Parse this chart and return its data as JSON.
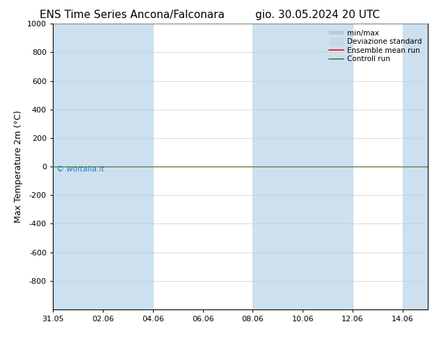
{
  "title_left": "ENS Time Series Ancona/Falconara",
  "title_right": "gio. 30.05.2024 20 UTC",
  "ylabel": "Max Temperature 2m (°C)",
  "ylim_top": -1000,
  "ylim_bottom": 1000,
  "yticks": [
    -800,
    -600,
    -400,
    -200,
    0,
    200,
    400,
    600,
    800,
    1000
  ],
  "xtick_labels": [
    "31.05",
    "02.06",
    "04.06",
    "06.06",
    "08.06",
    "10.06",
    "12.06",
    "14.06"
  ],
  "xtick_positions": [
    0,
    2,
    4,
    6,
    8,
    10,
    12,
    14
  ],
  "shaded_bands": [
    [
      0,
      2
    ],
    [
      2,
      4
    ],
    [
      8,
      10
    ],
    [
      10,
      12
    ],
    [
      14,
      15
    ]
  ],
  "shaded_color": "#cce0f0",
  "watermark": "© woitalia.it",
  "watermark_color": "#1a80c4",
  "ensemble_mean_color": "#ff0000",
  "control_run_color": "#4a7a30",
  "minmax_color": "#b8cdd8",
  "stddev_color": "#c8d8e0",
  "legend_items": [
    "min/max",
    "Deviazione standard",
    "Ensemble mean run",
    "Controll run"
  ],
  "background_color": "#ffffff",
  "plot_bg_color": "#ffffff",
  "title_fontsize": 11,
  "tick_fontsize": 8,
  "ylabel_fontsize": 9
}
